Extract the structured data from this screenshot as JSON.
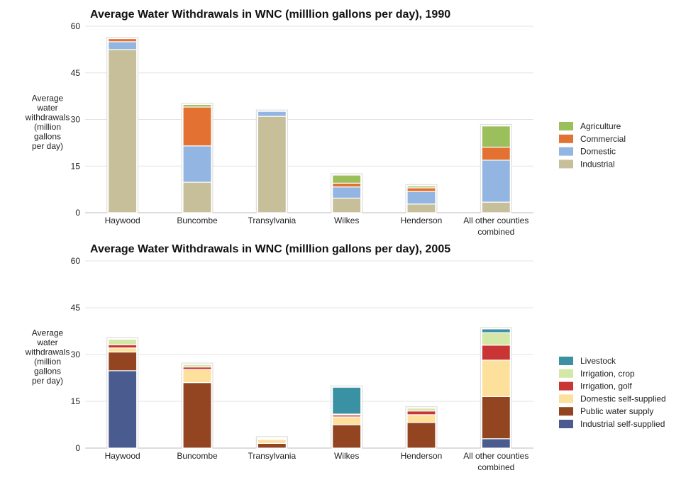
{
  "chart_data": [
    {
      "type": "bar",
      "stacked": true,
      "title": "Average Water Withdrawals in WNC (milllion gallons per day), 1990",
      "ylabel": [
        "Average",
        "water",
        "withdrawals",
        "(million",
        "gallons",
        "per day)"
      ],
      "ylim": [
        0,
        60
      ],
      "yticks": [
        "0",
        "15",
        "30",
        "45",
        "60"
      ],
      "grid": true,
      "legend_position": "right",
      "categories": [
        [
          "Haywood"
        ],
        [
          "Buncombe"
        ],
        [
          "Transylvania"
        ],
        [
          "Wilkes"
        ],
        [
          "Henderson"
        ],
        [
          "All other counties",
          "combined"
        ]
      ],
      "series": [
        {
          "name": "Industrial",
          "color": "#c6bf99",
          "values": [
            52.5,
            9.8,
            31.0,
            4.7,
            2.8,
            3.4
          ]
        },
        {
          "name": "Domestic",
          "color": "#92b5e1",
          "values": [
            2.5,
            11.7,
            1.6,
            3.6,
            4.0,
            13.5
          ]
        },
        {
          "name": "Commercial",
          "color": "#e37232",
          "values": [
            1.0,
            12.5,
            0,
            1.2,
            1.2,
            4.2
          ]
        },
        {
          "name": "Agriculture",
          "color": "#9bbf5a",
          "values": [
            0,
            0.8,
            0,
            2.6,
            0.6,
            6.8
          ]
        }
      ],
      "legend_order": [
        "Agriculture",
        "Commercial",
        "Domestic",
        "Industrial"
      ]
    },
    {
      "type": "bar",
      "stacked": true,
      "title": "Average Water Withdrawals in WNC (milllion gallons per day), 2005",
      "ylabel": [
        "Average",
        "water",
        "withdrawals",
        "(million",
        "gallons",
        "per day)"
      ],
      "ylim": [
        0,
        60
      ],
      "yticks": [
        "0",
        "15",
        "30",
        "45",
        "60"
      ],
      "grid": true,
      "legend_position": "right",
      "categories": [
        [
          "Haywood"
        ],
        [
          "Buncombe"
        ],
        [
          "Transylvania"
        ],
        [
          "Wilkes"
        ],
        [
          "Henderson"
        ],
        [
          "All other counties",
          "combined"
        ]
      ],
      "series": [
        {
          "name": "Industrial self-supplied",
          "color": "#4a5b8f",
          "values": [
            24.8,
            0,
            0,
            0,
            0,
            3.0
          ]
        },
        {
          "name": "Public water supply",
          "color": "#924520",
          "values": [
            6.0,
            21.0,
            1.5,
            7.5,
            8.2,
            13.5
          ]
        },
        {
          "name": "Domestic self-supplied",
          "color": "#fde09c",
          "values": [
            1.3,
            4.2,
            1.3,
            2.5,
            2.5,
            11.7
          ]
        },
        {
          "name": "Irrigation, golf",
          "color": "#c93434",
          "values": [
            1.0,
            0.8,
            0.2,
            0.6,
            1.2,
            4.8
          ]
        },
        {
          "name": "Irrigation, crop",
          "color": "#d3e7a7",
          "values": [
            1.8,
            0.8,
            0.2,
            0.3,
            0.9,
            4.0
          ]
        },
        {
          "name": "Livestock",
          "color": "#3a91a4",
          "values": [
            0,
            0,
            0,
            8.6,
            0,
            1.2
          ]
        }
      ],
      "legend_order": [
        "Livestock",
        "Irrigation, crop",
        "Irrigation, golf",
        "Domestic self-supplied",
        "Public water supply",
        "Industrial self-supplied"
      ]
    }
  ]
}
